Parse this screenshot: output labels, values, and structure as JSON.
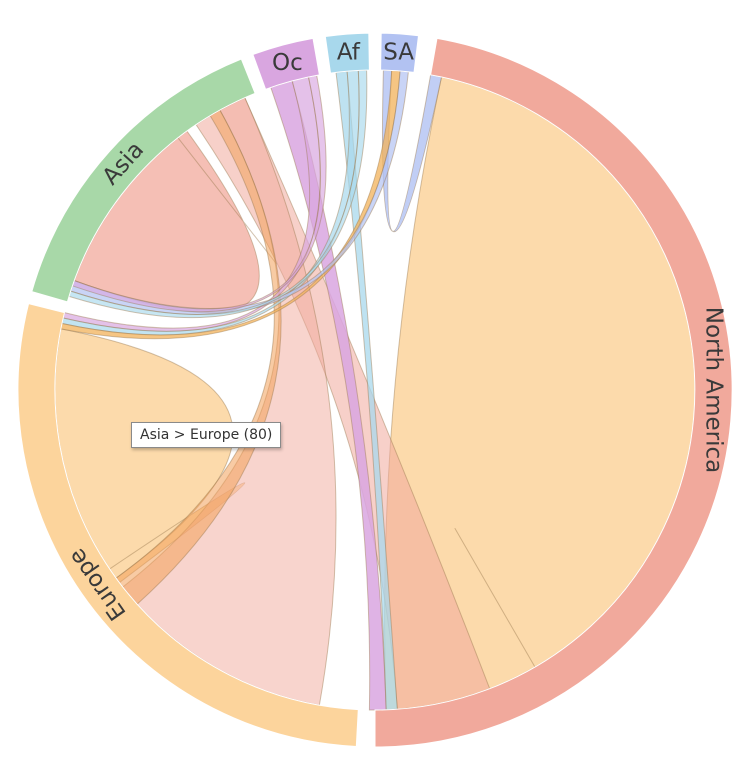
{
  "chart_data": {
    "type": "chord",
    "groups": [
      {
        "id": "na",
        "label": "North America",
        "color": "#f1a99c"
      },
      {
        "id": "eu",
        "label": "Europe",
        "color": "#fcd49c"
      },
      {
        "id": "asia",
        "label": "Asia",
        "color": "#a8d8a8"
      },
      {
        "id": "oc",
        "label": "Oc",
        "color": "#d9a6e0"
      },
      {
        "id": "af",
        "label": "Af",
        "color": "#a8d8ec"
      },
      {
        "id": "sa",
        "label": "SA",
        "color": "#b2c2f2"
      }
    ],
    "highlighted_flow": {
      "source": "Asia",
      "target": "Europe",
      "value": 80
    }
  },
  "tooltip": {
    "text": "Asia > Europe (80)"
  }
}
